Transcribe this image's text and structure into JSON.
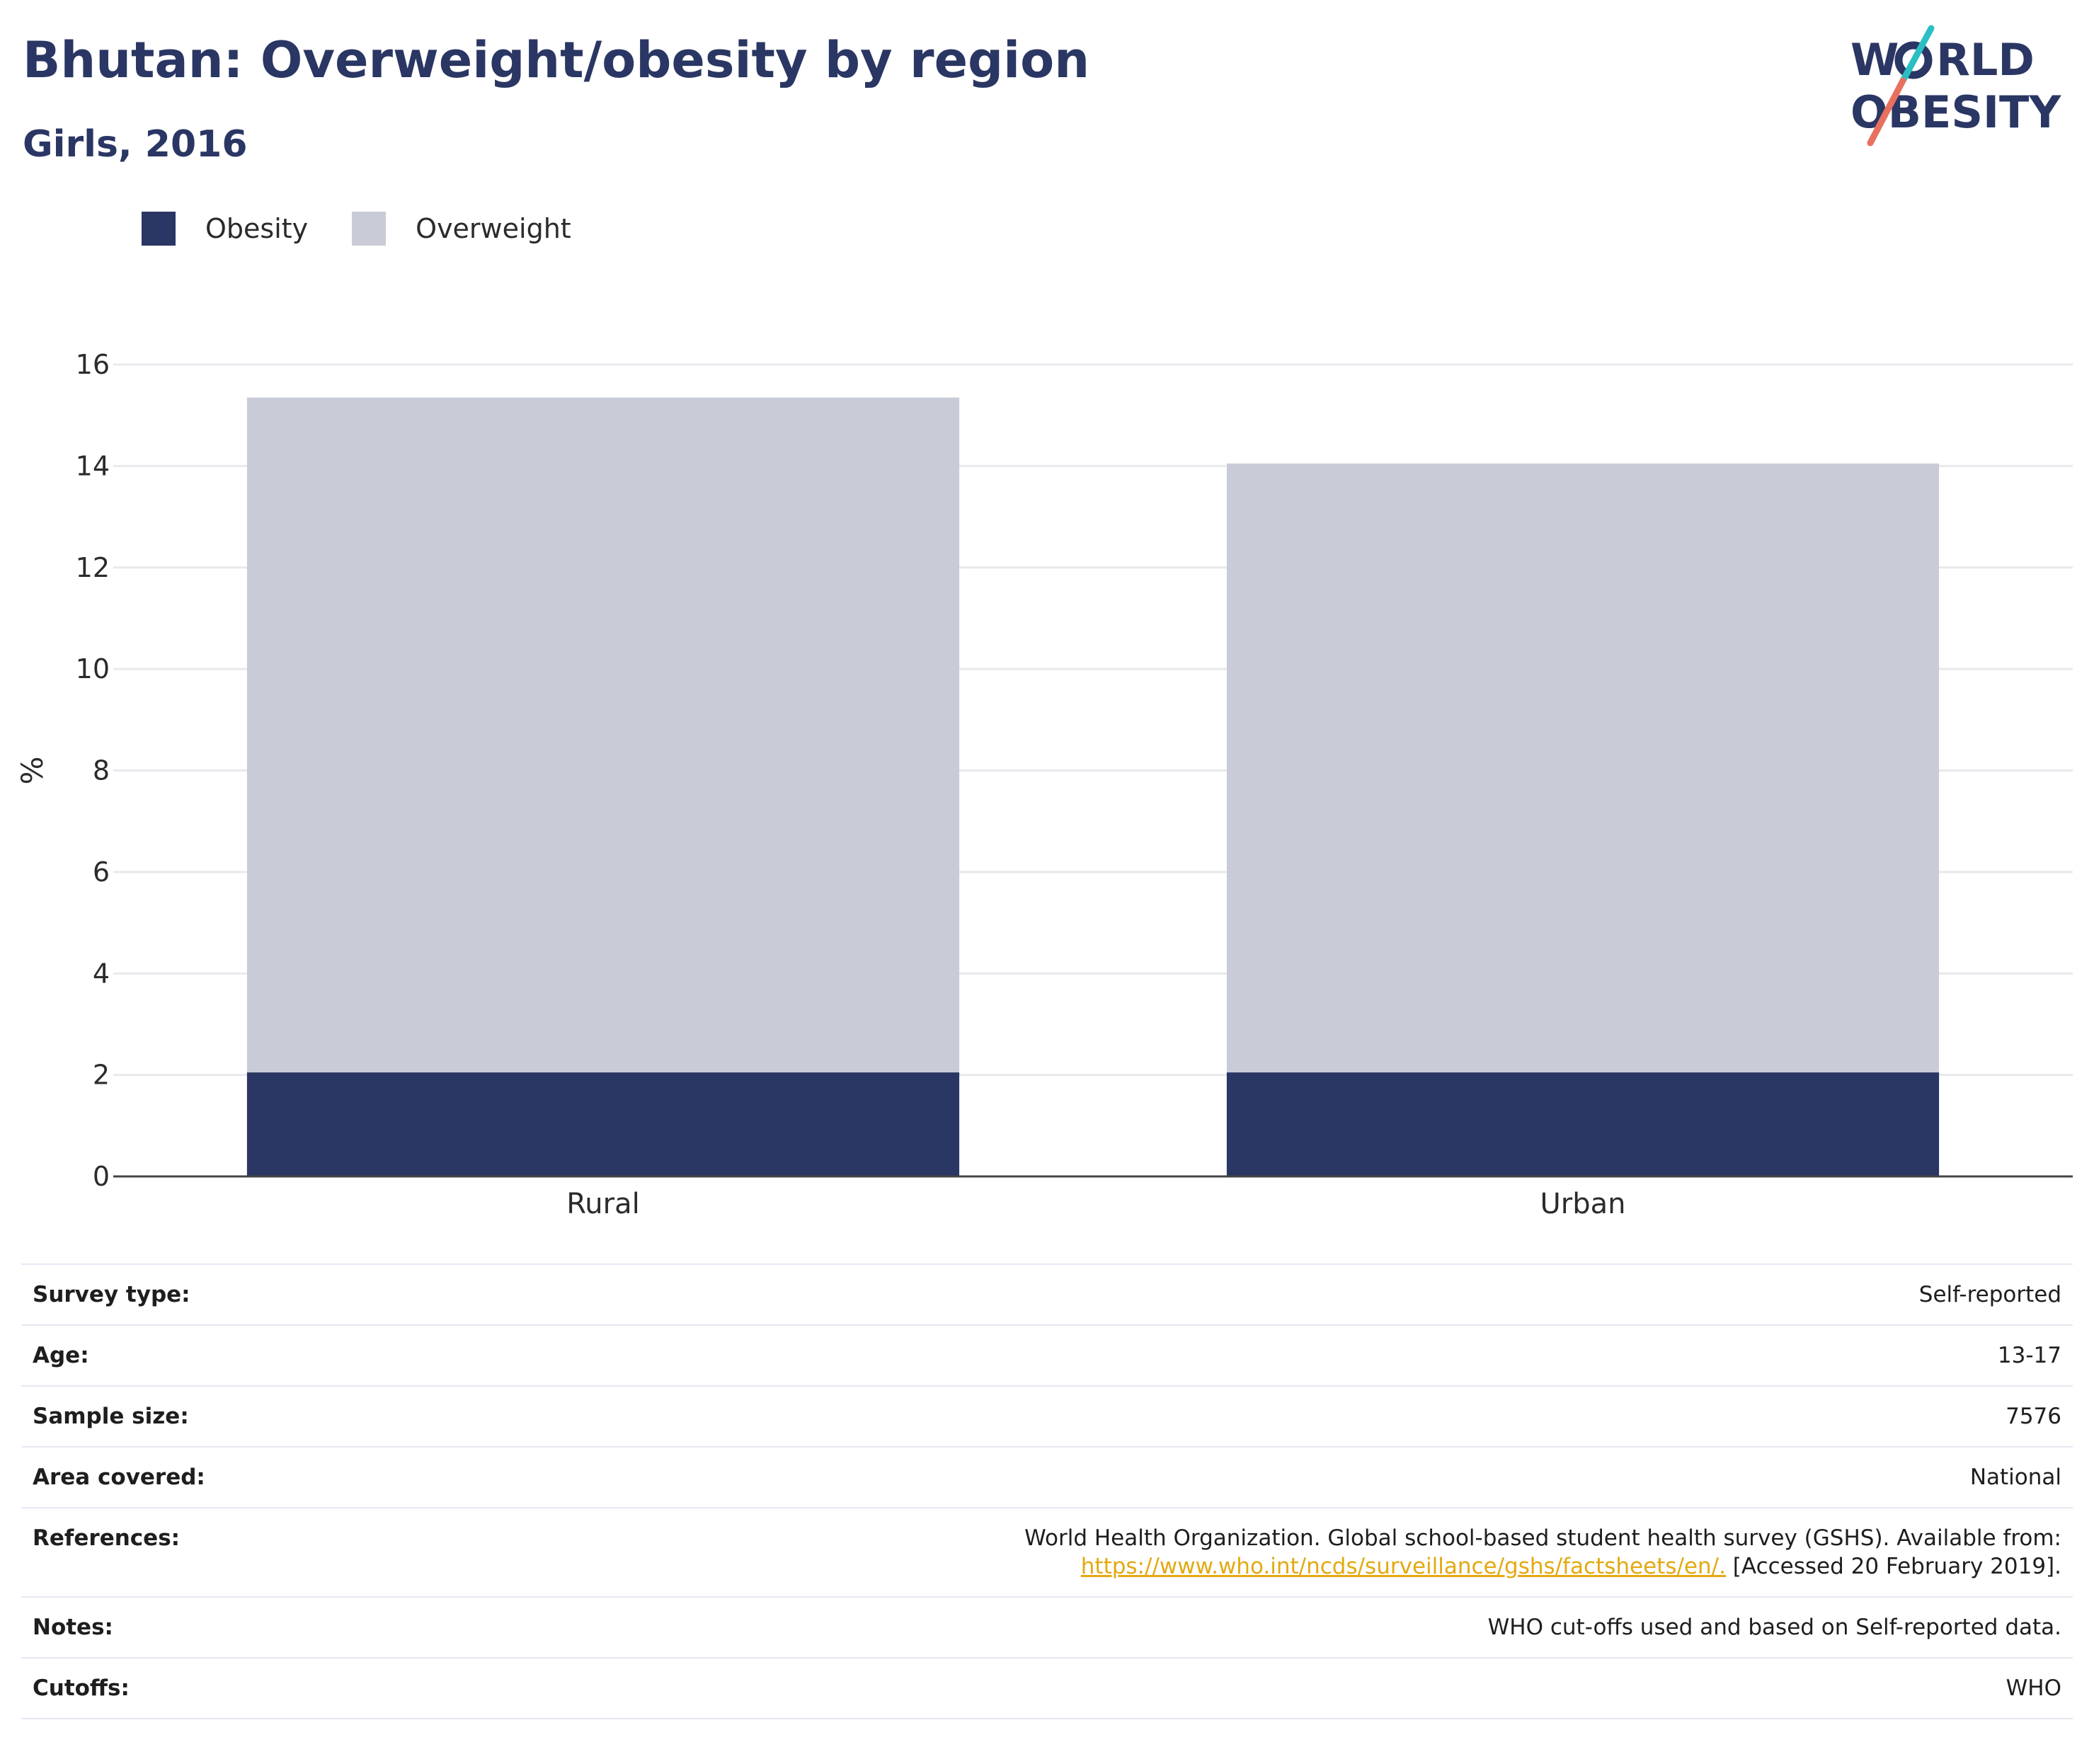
{
  "header": {
    "title": "Bhutan: Overweight/obesity by region",
    "subtitle": "Girls, 2016"
  },
  "logo": {
    "line1": "W",
    "line1_rest": "RLD",
    "line2": "OBESITY",
    "colors": {
      "navy": "#2a3663",
      "teal": "#2bbfc4",
      "coral": "#e8705f"
    }
  },
  "legend": [
    {
      "label": "Obesity",
      "color": "#2a3663"
    },
    {
      "label": "Overweight",
      "color": "#c9ccd7"
    }
  ],
  "chart_data": {
    "type": "bar",
    "stacked": true,
    "categories": [
      "Rural",
      "Urban"
    ],
    "series": [
      {
        "name": "Obesity",
        "values": [
          2.05,
          2.05
        ],
        "color": "#2a3663"
      },
      {
        "name": "Overweight",
        "values": [
          13.3,
          12.0
        ],
        "color": "#c9ccd7"
      }
    ],
    "title": "Bhutan: Overweight/obesity by region",
    "subtitle": "Girls, 2016",
    "xlabel": "",
    "ylabel": "%",
    "ylim": [
      0,
      16
    ],
    "yticks": [
      0,
      2,
      4,
      6,
      8,
      10,
      12,
      14,
      16
    ],
    "grid": true,
    "legend_position": "top-left"
  },
  "info": {
    "rows": [
      {
        "key": "Survey type:",
        "value": "Self-reported"
      },
      {
        "key": "Age:",
        "value": "13-17"
      },
      {
        "key": "Sample size:",
        "value": "7576"
      },
      {
        "key": "Area covered:",
        "value": "National"
      }
    ],
    "references": {
      "key": "References:",
      "text_before": "World Health Organization. Global school-based student health survey (GSHS). Available from:",
      "link": "https://www.who.int/ncds/surveillance/gshs/factsheets/en/.",
      "text_after": " [Accessed 20 February 2019]."
    },
    "rows_after": [
      {
        "key": "Notes:",
        "value": "WHO cut-offs used and based on Self-reported data."
      },
      {
        "key": "Cutoffs:",
        "value": "WHO"
      }
    ]
  }
}
